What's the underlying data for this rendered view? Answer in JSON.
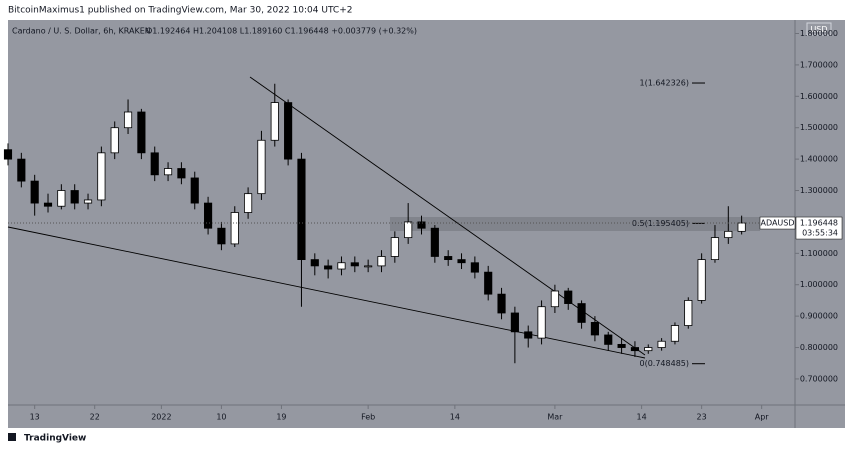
{
  "header": "BitcoinMaximus1 published on TradingView.com, Mar 30, 2022 10:04 UTC+2",
  "footer": "TradingView",
  "chart_data": {
    "type": "candlestick",
    "title": "Cardano / U. S. Dollar, 6h, KRAKEN",
    "legend_values": "O1.192464 H1.204108 L1.189160 C1.196448 +0.003779 (+0.32%)",
    "currency": "USD",
    "symbol": "ADAUSD",
    "last_price": 1.196448,
    "countdown": "03:55:34",
    "background": "#9598a1",
    "up_color": "#ffffff",
    "down_color": "#000000",
    "x": [
      0,
      2,
      4,
      6,
      8,
      10,
      12,
      14,
      16,
      18,
      20,
      22,
      24,
      26,
      28,
      30,
      32,
      34,
      36,
      38,
      40,
      42,
      44,
      46,
      48,
      50,
      52,
      54,
      56,
      58,
      60,
      62,
      64,
      66,
      68,
      70,
      72,
      74,
      76,
      78,
      80,
      82,
      84,
      86,
      88,
      90,
      92,
      94,
      96,
      98,
      100,
      102,
      104,
      106,
      108,
      110
    ],
    "open": [
      1.43,
      1.4,
      1.33,
      1.26,
      1.25,
      1.3,
      1.26,
      1.27,
      1.42,
      1.5,
      1.55,
      1.42,
      1.35,
      1.37,
      1.34,
      1.26,
      1.18,
      1.13,
      1.23,
      1.29,
      1.46,
      1.58,
      1.4,
      1.08,
      1.06,
      1.05,
      1.07,
      1.06,
      1.06,
      1.09,
      1.15,
      1.2,
      1.18,
      1.09,
      1.08,
      1.07,
      1.04,
      0.97,
      0.91,
      0.85,
      0.83,
      0.93,
      0.98,
      0.94,
      0.88,
      0.84,
      0.81,
      0.8,
      0.79,
      0.8,
      0.82,
      0.87,
      0.95,
      1.08,
      1.15,
      1.17
    ],
    "high": [
      1.45,
      1.42,
      1.35,
      1.29,
      1.32,
      1.32,
      1.29,
      1.44,
      1.52,
      1.59,
      1.56,
      1.44,
      1.39,
      1.39,
      1.36,
      1.28,
      1.2,
      1.25,
      1.31,
      1.49,
      1.64,
      1.59,
      1.42,
      1.1,
      1.08,
      1.09,
      1.09,
      1.08,
      1.11,
      1.17,
      1.26,
      1.22,
      1.19,
      1.11,
      1.1,
      1.09,
      1.06,
      0.99,
      0.93,
      0.87,
      0.95,
      1.0,
      0.99,
      0.95,
      0.9,
      0.85,
      0.83,
      0.82,
      0.81,
      0.83,
      0.88,
      0.96,
      1.1,
      1.19,
      1.25,
      1.22
    ],
    "low": [
      1.38,
      1.31,
      1.22,
      1.23,
      1.24,
      1.24,
      1.24,
      1.25,
      1.4,
      1.48,
      1.4,
      1.33,
      1.33,
      1.32,
      1.24,
      1.16,
      1.11,
      1.12,
      1.21,
      1.27,
      1.44,
      1.38,
      0.93,
      1.03,
      1.02,
      1.03,
      1.04,
      1.04,
      1.04,
      1.07,
      1.13,
      1.16,
      1.07,
      1.06,
      1.05,
      1.02,
      0.95,
      0.89,
      0.75,
      0.8,
      0.81,
      0.91,
      0.92,
      0.86,
      0.82,
      0.79,
      0.78,
      0.77,
      0.78,
      0.79,
      0.81,
      0.86,
      0.94,
      1.07,
      1.13,
      1.16
    ],
    "close": [
      1.4,
      1.33,
      1.26,
      1.25,
      1.3,
      1.26,
      1.27,
      1.42,
      1.5,
      1.55,
      1.42,
      1.35,
      1.37,
      1.34,
      1.26,
      1.18,
      1.13,
      1.23,
      1.29,
      1.46,
      1.58,
      1.4,
      1.08,
      1.06,
      1.05,
      1.07,
      1.06,
      1.06,
      1.09,
      1.15,
      1.2,
      1.18,
      1.09,
      1.08,
      1.07,
      1.04,
      0.97,
      0.91,
      0.85,
      0.83,
      0.93,
      0.98,
      0.94,
      0.88,
      0.84,
      0.81,
      0.8,
      0.79,
      0.8,
      0.82,
      0.87,
      0.95,
      1.08,
      1.15,
      1.17,
      1.196448
    ],
    "xlim": [
      0,
      118
    ],
    "xticks": [
      {
        "value": 4,
        "label": "13"
      },
      {
        "value": 13,
        "label": "22"
      },
      {
        "value": 23,
        "label": "2022"
      },
      {
        "value": 32,
        "label": "10"
      },
      {
        "value": 41,
        "label": "19"
      },
      {
        "value": 54,
        "label": "Feb"
      },
      {
        "value": 67,
        "label": "14"
      },
      {
        "value": 82,
        "label": "Mar"
      },
      {
        "value": 95,
        "label": "14"
      },
      {
        "value": 104,
        "label": "23"
      },
      {
        "value": 113,
        "label": "Apr"
      }
    ],
    "ylim": [
      0.617,
      1.843
    ],
    "yticks": [
      {
        "value": 1.8,
        "label": "1.800000"
      },
      {
        "value": 1.7,
        "label": "1.700000"
      },
      {
        "value": 1.6,
        "label": "1.600000"
      },
      {
        "value": 1.5,
        "label": "1.500000"
      },
      {
        "value": 1.4,
        "label": "1.400000"
      },
      {
        "value": 1.3,
        "label": "1.300000"
      },
      {
        "value": 1.1,
        "label": "1.100000"
      },
      {
        "value": 1.0,
        "label": "1.000000"
      },
      {
        "value": 0.9,
        "label": "0.900000"
      },
      {
        "value": 0.8,
        "label": "0.800000"
      },
      {
        "value": 0.7,
        "label": "0.700000"
      }
    ],
    "fib_levels": [
      {
        "value": 1.642326,
        "label": "1(1.642326)"
      },
      {
        "value": 1.195405,
        "label": "0.5(1.195405)"
      },
      {
        "value": 0.748485,
        "label": "0(0.748485)"
      }
    ]
  }
}
